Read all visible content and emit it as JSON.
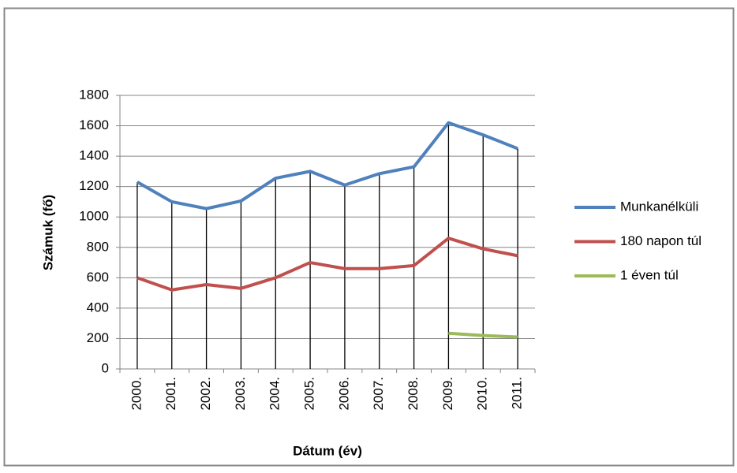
{
  "chart_data": {
    "type": "line",
    "y_label": "Számuk (fő)",
    "x_label": "Dátum (év)",
    "categories": [
      "2000.",
      "2001.",
      "2002.",
      "2003.",
      "2004.",
      "2005.",
      "2006.",
      "2007.",
      "2008.",
      "2009.",
      "2010.",
      "2011."
    ],
    "series": [
      {
        "name": "Munkanélküli",
        "color": "#4f81bd",
        "values": [
          1230,
          1100,
          1055,
          1105,
          1255,
          1300,
          1210,
          1285,
          1330,
          1620,
          1540,
          1450
        ]
      },
      {
        "name": "180 napon túl",
        "color": "#c0504d",
        "values": [
          600,
          520,
          555,
          530,
          600,
          700,
          660,
          660,
          680,
          860,
          790,
          745
        ]
      },
      {
        "name": "1 éven túl",
        "color": "#9bbb59",
        "values": [
          null,
          null,
          null,
          null,
          null,
          null,
          null,
          null,
          null,
          235,
          220,
          210
        ]
      }
    ],
    "ylim": [
      0,
      1800
    ],
    "yticks": [
      0,
      200,
      400,
      600,
      800,
      1000,
      1200,
      1400,
      1600,
      1800
    ],
    "grid": true,
    "legend": "right",
    "drop_lines": true
  }
}
